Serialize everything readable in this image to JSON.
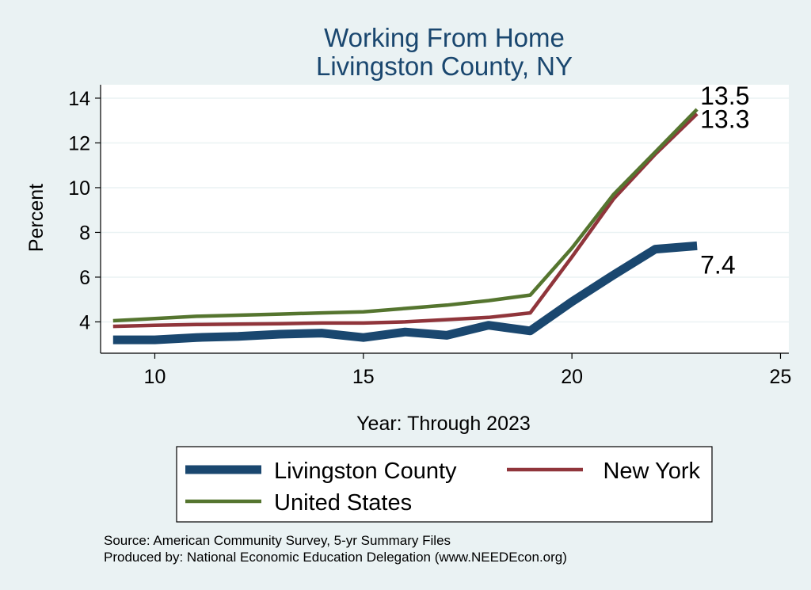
{
  "chart_data": {
    "type": "line",
    "title": "Working From Home",
    "subtitle": "Livingston County, NY",
    "xlabel": "Year: Through 2023",
    "ylabel": "Percent",
    "xlim": [
      8.7,
      25.2
    ],
    "ylim": [
      2.6,
      14.6
    ],
    "x_ticks": [
      10,
      15,
      20,
      25
    ],
    "y_ticks": [
      4,
      6,
      8,
      10,
      12,
      14
    ],
    "grid": true,
    "legend_position": "bottom",
    "x": [
      9,
      10,
      11,
      12,
      13,
      14,
      15,
      16,
      17,
      18,
      19,
      20,
      21,
      22,
      23
    ],
    "series": [
      {
        "name": "Livingston County",
        "color": "#1a476f",
        "values": [
          3.2,
          3.2,
          3.3,
          3.35,
          3.45,
          3.5,
          3.3,
          3.55,
          3.4,
          3.85,
          3.6,
          4.9,
          6.1,
          7.25,
          7.4
        ]
      },
      {
        "name": "New York",
        "color": "#90353b",
        "values": [
          3.8,
          3.85,
          3.88,
          3.9,
          3.92,
          3.95,
          3.95,
          4.0,
          4.1,
          4.2,
          4.4,
          6.9,
          9.5,
          11.5,
          13.3
        ]
      },
      {
        "name": "United States",
        "color": "#55752f",
        "values": [
          4.05,
          4.15,
          4.25,
          4.3,
          4.35,
          4.4,
          4.45,
          4.6,
          4.75,
          4.95,
          5.2,
          7.3,
          9.7,
          11.6,
          13.5
        ]
      }
    ],
    "end_labels": [
      {
        "series": 2,
        "text": "13.5"
      },
      {
        "series": 1,
        "text": "13.3"
      },
      {
        "series": 0,
        "text": "7.4"
      }
    ]
  },
  "notes": {
    "source": "Source: American Community Survey, 5-yr Summary Files",
    "producer": "Produced by: National Economic Education Delegation (www.NEEDEcon.org)"
  }
}
